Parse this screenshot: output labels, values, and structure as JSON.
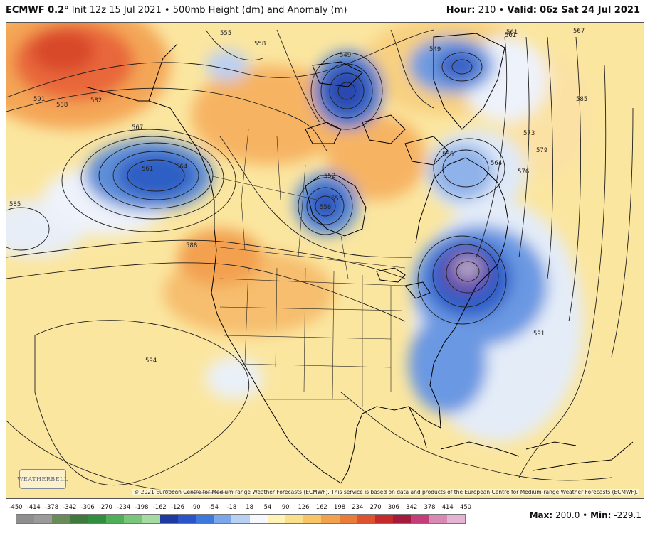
{
  "header": {
    "model": "ECMWF 0.2°",
    "init": "Init 12z 15 Jul 2021",
    "field": "500mb Height (dm) and Anomaly (m)",
    "hour_label": "Hour:",
    "hour_value": "210",
    "valid_label": "Valid:",
    "valid_value": "06z Sat 24 Jul 2021"
  },
  "map": {
    "copyright": "© 2021 European Centre for Medium-range Weather Forecasts (ECMWF). This service is based on data and products of the European Centre for Medium-range Weather Forecasts (ECMWF).",
    "logo_text": "WEATHERBELL",
    "contour_labels": [
      "555",
      "558",
      "549",
      "549",
      "561",
      "567",
      "591",
      "588",
      "582",
      "567",
      "561",
      "564",
      "552",
      "555",
      "558",
      "555",
      "573",
      "579",
      "576",
      "585",
      "564",
      "585",
      "588",
      "594",
      "591",
      "561"
    ]
  },
  "colorbar": {
    "ticks": [
      "-450",
      "-414",
      "-378",
      "-342",
      "-306",
      "-270",
      "-234",
      "-198",
      "-162",
      "-126",
      "-90",
      "-54",
      "-18",
      "18",
      "54",
      "90",
      "126",
      "162",
      "198",
      "234",
      "270",
      "306",
      "342",
      "378",
      "414",
      "450"
    ],
    "colors": [
      "#8e8e8e",
      "#9a9a9a",
      "#6a8a5a",
      "#3f7a3c",
      "#2f8f3e",
      "#4fae58",
      "#79c67a",
      "#a4dca2",
      "#1f3aa0",
      "#2a55c8",
      "#3d78dc",
      "#7aa6ea",
      "#b8d0f4",
      "#f6f8ff",
      "#fff3b8",
      "#fbe08c",
      "#f8c468",
      "#f2a24e",
      "#ea7c3a",
      "#de5230",
      "#c42a2a",
      "#a41a3c",
      "#c43c78",
      "#d88ab4",
      "#e4b4d2"
    ]
  },
  "stats": {
    "max_label": "Max:",
    "max_value": "200.0",
    "min_label": "Min:",
    "min_value": "-229.1"
  }
}
